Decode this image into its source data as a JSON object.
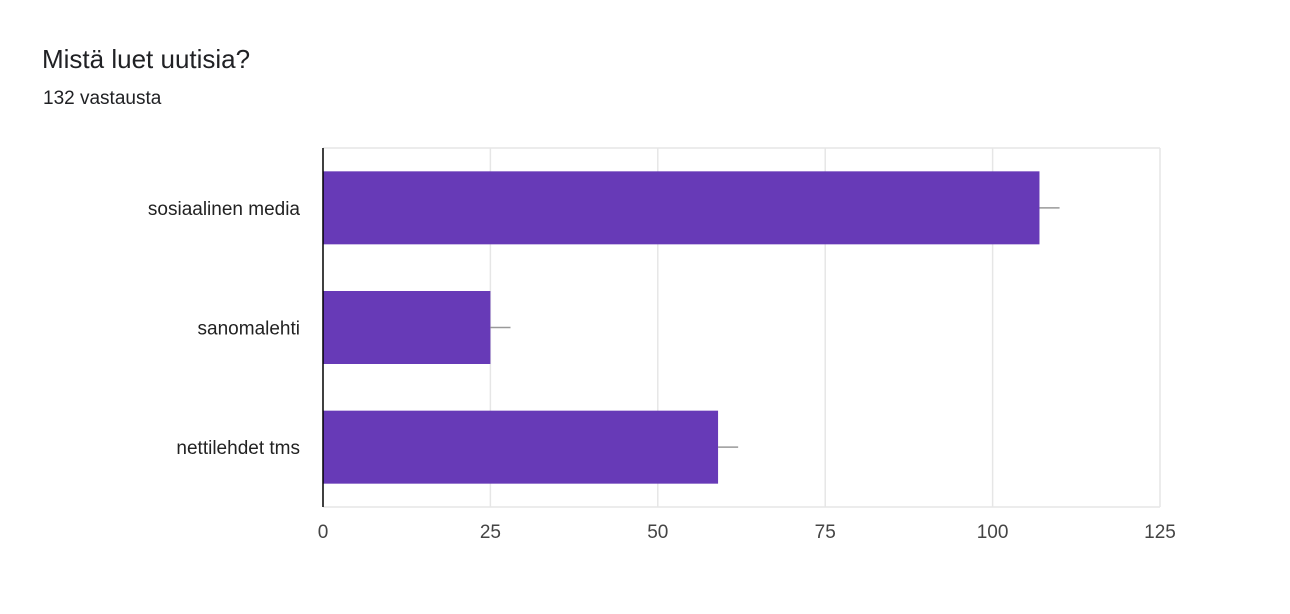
{
  "header": {
    "title": "Mistä luet uutisia?",
    "subtitle": "132 vastausta"
  },
  "colors": {
    "bar": "#673ab7",
    "grid": "#e6e6e6",
    "axis": "#000000",
    "whisker": "#999999"
  },
  "chart_data": {
    "type": "bar",
    "orientation": "horizontal",
    "categories": [
      "sosiaalinen media",
      "sanomalehti",
      "nettilehdet tms"
    ],
    "values": [
      107,
      25,
      59
    ],
    "error_upper": [
      110,
      28,
      62
    ],
    "xlim": [
      0,
      125
    ],
    "xticks": [
      "0",
      "25",
      "50",
      "75",
      "100",
      "125"
    ],
    "grid": true,
    "legend": "none"
  }
}
